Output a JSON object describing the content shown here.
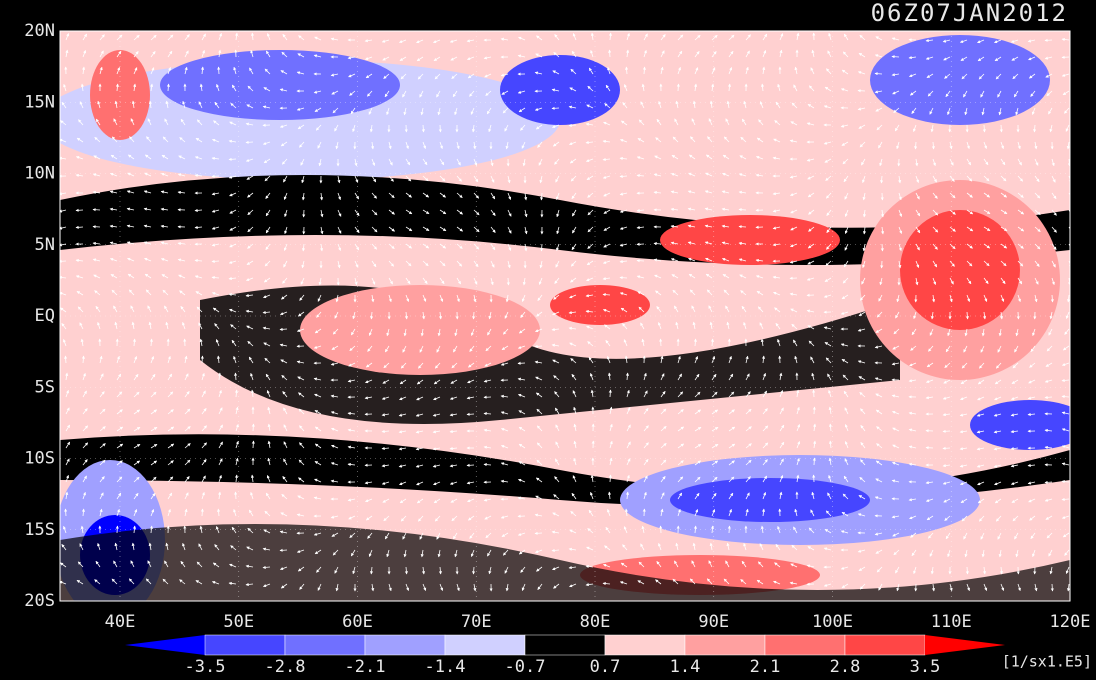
{
  "title": "06Z07JAN2012",
  "lat_labels": [
    "20N",
    "15N",
    "10N",
    "5N",
    "EQ",
    "5S",
    "10S",
    "15S",
    "20S"
  ],
  "lon_labels": [
    "40E",
    "50E",
    "60E",
    "70E",
    "80E",
    "90E",
    "100E",
    "110E",
    "120E"
  ],
  "colorbar": {
    "labels": [
      "-3.5",
      "-2.8",
      "-2.1",
      "-1.4",
      "-0.7",
      "0.7",
      "1.4",
      "2.1",
      "2.8",
      "3.5"
    ],
    "colors": [
      "#0000ff",
      "#4646ff",
      "#7070ff",
      "#a0a0ff",
      "#d0d0ff",
      "#000000",
      "#ffd0d0",
      "#ffa0a0",
      "#ff7070",
      "#ff4646",
      "#ff0000"
    ],
    "unit": "[1/sx1.E5]"
  }
}
